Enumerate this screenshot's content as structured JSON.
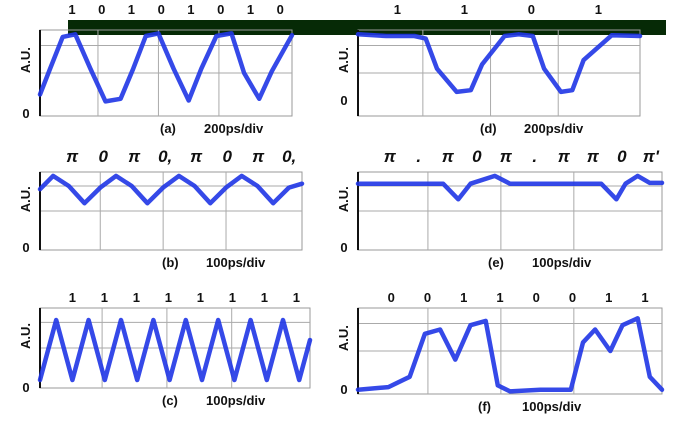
{
  "chart_data": [
    {
      "type": "line",
      "panel_label": "(a)",
      "timebase": "200ps/div",
      "ylabel": "A.U.",
      "y_zero_label": "0",
      "bit_labels": [
        "1",
        "0",
        "1",
        "0",
        "1",
        "0",
        "1",
        "0"
      ],
      "ylim": [
        0,
        1
      ],
      "series": [
        {
          "x": [
            0,
            0.04,
            0.09,
            0.14,
            0.2,
            0.26,
            0.32,
            0.37,
            0.42,
            0.47,
            0.53,
            0.59,
            0.64,
            0.7,
            0.76,
            0.81,
            0.87,
            0.92,
            1
          ],
          "values": [
            0.25,
            0.55,
            0.92,
            0.95,
            0.55,
            0.17,
            0.2,
            0.55,
            0.93,
            0.96,
            0.55,
            0.18,
            0.55,
            0.93,
            0.96,
            0.5,
            0.2,
            0.52,
            0.94
          ]
        }
      ],
      "line_color": "#1f35e6"
    },
    {
      "type": "line",
      "panel_label": "(d)",
      "timebase": "200ps/div",
      "ylabel": "A.U.",
      "y_zero_label": "0",
      "bit_labels": [
        "1",
        "1",
        "0",
        "1"
      ],
      "ylim": [
        0,
        1
      ],
      "series": [
        {
          "x": [
            0,
            0.1,
            0.2,
            0.24,
            0.28,
            0.35,
            0.4,
            0.44,
            0.52,
            0.57,
            0.62,
            0.66,
            0.72,
            0.76,
            0.8,
            0.9,
            1
          ],
          "values": [
            0.95,
            0.93,
            0.93,
            0.9,
            0.55,
            0.28,
            0.3,
            0.6,
            0.93,
            0.95,
            0.93,
            0.55,
            0.28,
            0.3,
            0.65,
            0.94,
            0.93
          ]
        }
      ],
      "line_color": "#1f35e6"
    },
    {
      "type": "line",
      "panel_label": "(b)",
      "timebase": "100ps/div",
      "ylabel": "A.U.",
      "y_zero_label": "0",
      "bit_labels": [
        "π",
        "0",
        "π",
        "0,",
        "π",
        "0",
        "π",
        "0,"
      ],
      "ylim": [
        0,
        1
      ],
      "series": [
        {
          "x": [
            0,
            0.05,
            0.11,
            0.17,
            0.23,
            0.29,
            0.35,
            0.41,
            0.47,
            0.53,
            0.59,
            0.65,
            0.71,
            0.77,
            0.83,
            0.89,
            0.95,
            1
          ],
          "values": [
            0.78,
            0.95,
            0.82,
            0.6,
            0.8,
            0.95,
            0.82,
            0.6,
            0.8,
            0.95,
            0.82,
            0.6,
            0.8,
            0.95,
            0.82,
            0.6,
            0.8,
            0.85
          ]
        }
      ],
      "line_color": "#1f35e6"
    },
    {
      "type": "line",
      "panel_label": "(e)",
      "timebase": "100ps/div",
      "ylabel": "A.U.",
      "y_zero_label": "0",
      "bit_labels": [
        "π",
        ".",
        "π",
        "0",
        "π",
        ".",
        "π",
        "π",
        "0",
        "π'"
      ],
      "ylim": [
        0,
        1
      ],
      "series": [
        {
          "x": [
            0,
            0.15,
            0.28,
            0.33,
            0.37,
            0.45,
            0.5,
            0.55,
            0.7,
            0.8,
            0.85,
            0.88,
            0.92,
            0.96,
            1
          ],
          "values": [
            0.85,
            0.85,
            0.85,
            0.65,
            0.85,
            0.95,
            0.85,
            0.85,
            0.85,
            0.85,
            0.65,
            0.85,
            0.95,
            0.86,
            0.86
          ]
        }
      ],
      "line_color": "#1f35e6"
    },
    {
      "type": "line",
      "panel_label": "(c)",
      "timebase": "100ps/div",
      "ylabel": "A.U.",
      "y_zero_label": "0",
      "bit_labels": [
        "1",
        "1",
        "1",
        "1",
        "1",
        "1",
        "1",
        "1"
      ],
      "ylim": [
        0,
        1
      ],
      "series": [
        {
          "x": [
            0,
            0.06,
            0.12,
            0.18,
            0.24,
            0.3,
            0.36,
            0.42,
            0.48,
            0.54,
            0.6,
            0.66,
            0.72,
            0.78,
            0.84,
            0.9,
            0.96,
            1
          ],
          "values": [
            0.1,
            0.85,
            0.1,
            0.85,
            0.1,
            0.85,
            0.1,
            0.85,
            0.1,
            0.85,
            0.1,
            0.85,
            0.1,
            0.85,
            0.1,
            0.85,
            0.1,
            0.6
          ]
        }
      ],
      "line_color": "#1f35e6"
    },
    {
      "type": "line",
      "panel_label": "(f)",
      "timebase": "100ps/div",
      "ylabel": "A.U.",
      "y_zero_label": "0",
      "bit_labels": [
        "0",
        "0",
        "1",
        "1",
        "0",
        "0",
        "1",
        "1"
      ],
      "ylim": [
        0,
        1
      ],
      "series": [
        {
          "x": [
            0,
            0.1,
            0.17,
            0.22,
            0.27,
            0.32,
            0.37,
            0.42,
            0.46,
            0.5,
            0.6,
            0.7,
            0.74,
            0.78,
            0.83,
            0.87,
            0.92,
            0.96,
            1
          ],
          "values": [
            0.05,
            0.08,
            0.2,
            0.7,
            0.75,
            0.4,
            0.8,
            0.85,
            0.1,
            0.03,
            0.05,
            0.05,
            0.6,
            0.75,
            0.5,
            0.8,
            0.88,
            0.2,
            0.05
          ]
        }
      ],
      "line_color": "#1f35e6"
    }
  ]
}
